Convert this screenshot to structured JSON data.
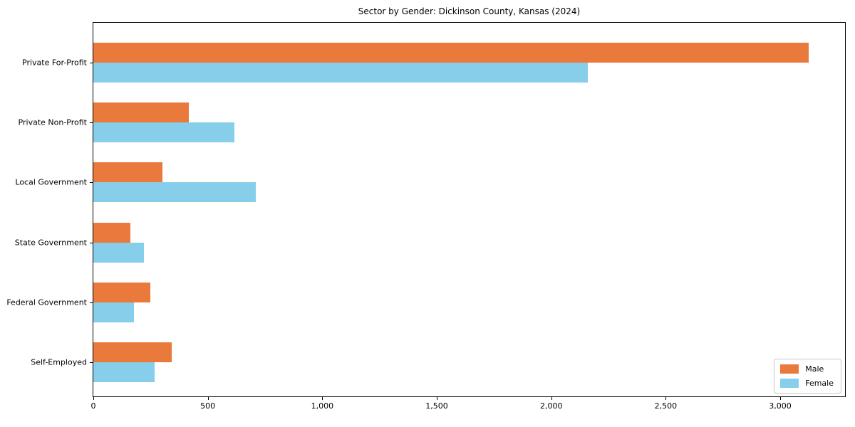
{
  "chart_data": {
    "type": "bar",
    "orientation": "horizontal",
    "title": "Sector by Gender: Dickinson County, Kansas (2024)",
    "categories": [
      "Private For-Profit",
      "Private Non-Profit",
      "Local Government",
      "State Government",
      "Federal Government",
      "Self-Employed"
    ],
    "series": [
      {
        "name": "Male",
        "color": "#E97A3C",
        "values": [
          3124,
          417,
          302,
          162,
          249,
          342
        ]
      },
      {
        "name": "Female",
        "color": "#87CEEB",
        "values": [
          2161,
          616,
          709,
          221,
          177,
          267
        ]
      }
    ],
    "xlim": [
      0,
      3283
    ],
    "x_ticks": [
      0,
      500,
      1000,
      1500,
      2000,
      2500,
      3000
    ],
    "x_tick_labels": [
      "0",
      "500",
      "1,000",
      "1,500",
      "2,000",
      "2,500",
      "3,000"
    ],
    "xlabel": "",
    "ylabel": "",
    "grid": false,
    "legend_position": "lower right",
    "colors": {
      "spine": "#000000",
      "legend_border": "#c9c9c9",
      "background": "#ffffff"
    }
  }
}
